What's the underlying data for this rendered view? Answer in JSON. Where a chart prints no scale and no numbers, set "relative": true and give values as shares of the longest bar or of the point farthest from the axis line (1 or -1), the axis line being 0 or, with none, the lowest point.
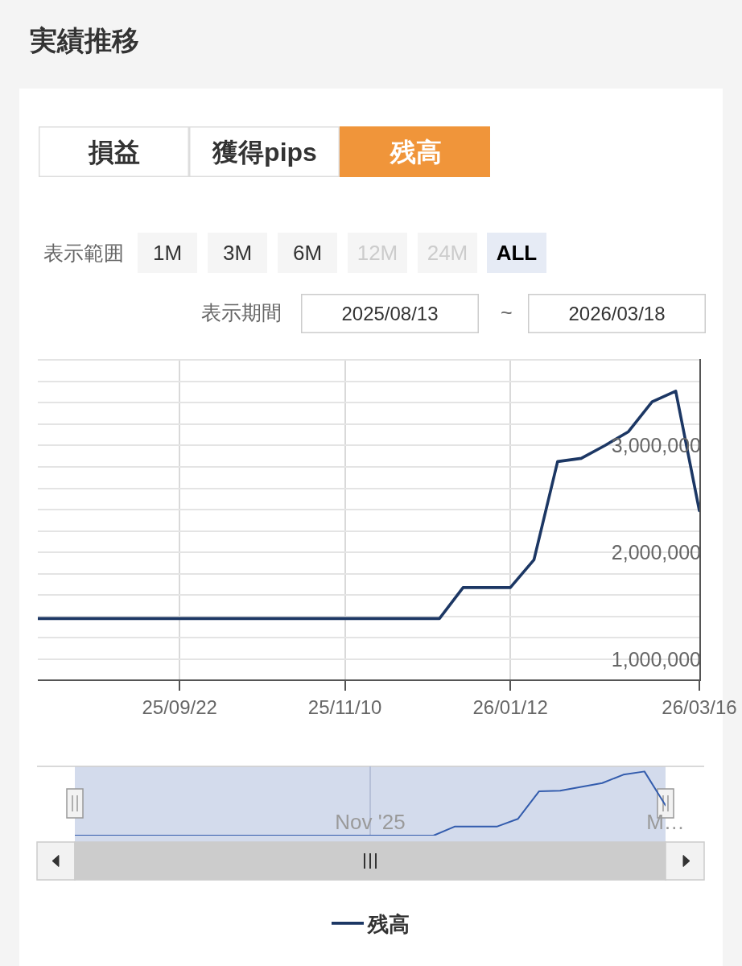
{
  "chart_data": [
    {
      "type": "line",
      "title": "実績推移",
      "annotations": [
        "損益",
        "獲得pips",
        "残高",
        "表示範囲",
        "1M",
        "3M",
        "6M",
        "12M",
        "24M",
        "ALL",
        "表示期間",
        "2025/08/13",
        "~",
        "2026/03/18"
      ],
      "categories": [
        null,
        null,
        null,
        null,
        null,
        null,
        "25/09/22",
        null,
        null,
        null,
        null,
        null,
        null,
        "25/11/10",
        null,
        null,
        null,
        null,
        null,
        null,
        "26/01/12",
        null,
        null,
        null,
        null,
        null,
        null,
        null,
        "26/03/16"
      ],
      "series": [
        {
          "name": "残高",
          "color": "#1c3764",
          "values": [
            1380000,
            1380000,
            1380000,
            1380000,
            1380000,
            1380000,
            1380000,
            1380000,
            1380000,
            1380000,
            1380000,
            1380000,
            1380000,
            1380000,
            1380000,
            1380000,
            1380000,
            1380000,
            1670000,
            1670000,
            1670000,
            1930000,
            2850000,
            2880000,
            3000000,
            3130000,
            3410000,
            3510000,
            2390000
          ]
        }
      ],
      "ylim": [
        810000,
        3810000
      ],
      "yticks": [
        {
          "value": 1000000,
          "label": "1,000,000"
        },
        {
          "value": 1200000,
          "label": null
        },
        {
          "value": 1400000,
          "label": null
        },
        {
          "value": 1600000,
          "label": null
        },
        {
          "value": 1800000,
          "label": null
        },
        {
          "value": 2000000,
          "label": "2,000,000"
        },
        {
          "value": 2200000,
          "label": null
        },
        {
          "value": 2400000,
          "label": null
        },
        {
          "value": 2600000,
          "label": null
        },
        {
          "value": 2800000,
          "label": null
        },
        {
          "value": 3000000,
          "label": "3,000,000"
        },
        {
          "value": 3200000,
          "label": null
        },
        {
          "value": 3400000,
          "label": null
        },
        {
          "value": 3600000,
          "label": null
        },
        {
          "value": 3800000,
          "label": null
        }
      ],
      "grid": true,
      "legend": "bottom"
    },
    {
      "type": "line",
      "relative": true,
      "categories": [
        null,
        null,
        null,
        null,
        null,
        null,
        null,
        null,
        null,
        null,
        null,
        null,
        null,
        null,
        "Nov '25",
        null,
        null,
        null,
        null,
        null,
        null,
        null,
        null,
        null,
        null,
        null,
        null,
        null,
        "M…"
      ],
      "series": [
        {
          "color": "#335cad",
          "values": [
            0,
            0,
            0,
            0,
            0,
            0,
            0,
            0,
            0,
            0,
            0,
            0,
            0,
            0,
            0,
            0,
            0,
            0,
            0.14,
            0.14,
            0.14,
            0.26,
            0.69,
            0.7,
            0.76,
            0.82,
            0.95,
            1,
            0.47
          ]
        }
      ],
      "grid": "x"
    }
  ]
}
